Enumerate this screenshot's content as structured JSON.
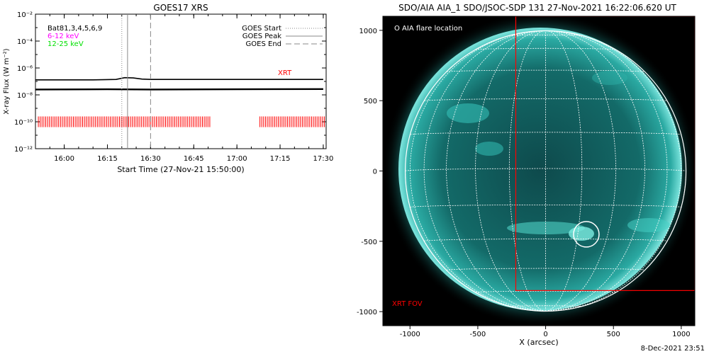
{
  "footer": "8-Dec-2021 23:51",
  "colors": {
    "red": "#ff0000",
    "magenta": "#ff00ff",
    "green": "#00e000",
    "aia_teal": "#2fb9b0"
  },
  "chart_data": [
    {
      "type": "line",
      "title": "GOES17 XRS",
      "xlabel": "Start Time (27-Nov-21 15:50:00)",
      "ylabel": "X-ray Flux (W m⁻²)",
      "xlim": [
        "15:50",
        "17:31"
      ],
      "ylim": [
        1e-12,
        0.01
      ],
      "yscale": "log",
      "x_tick_labels": [
        "16:00",
        "16:15",
        "16:30",
        "16:45",
        "17:00",
        "17:15",
        "17:30"
      ],
      "y_tick_labels": [
        "10⁻¹²",
        "10⁻¹⁰",
        "10⁻⁸",
        "10⁻⁶",
        "10⁻⁴",
        "10⁻²"
      ],
      "legend_left": [
        "Bat81,3,4,5,6,9",
        "6-12 keV",
        "12-25 keV"
      ],
      "legend_right": [
        "GOES Start",
        "GOES Peak",
        "GOES End"
      ],
      "series": [
        {
          "name": "",
          "x": [
            "15:50",
            "16:00",
            "16:10",
            "16:18",
            "16:21",
            "16:24",
            "16:27",
            "16:30",
            "16:45",
            "17:00",
            "17:15",
            "17:30"
          ],
          "y": [
            1.3e-07,
            1.3e-07,
            1.3e-07,
            1.4e-07,
            1.9e-07,
            1.8e-07,
            1.5e-07,
            1.4e-07,
            1.4e-07,
            1.4e-07,
            1.4e-07,
            1.4e-07
          ]
        },
        {
          "name": "",
          "x": [
            "15:50",
            "16:15",
            "16:30",
            "17:00",
            "17:30"
          ],
          "y": [
            2.5e-08,
            2.6e-08,
            2.5e-08,
            2.6e-08,
            2.7e-08
          ]
        }
      ],
      "markers": {
        "goes_start": "16:20",
        "goes_peak": "16:22",
        "goes_end": "16:30"
      },
      "xrt_label": "XRT",
      "xrt_intervals": [
        [
          "15:51",
          "16:51"
        ],
        [
          "17:08",
          "17:31"
        ]
      ]
    },
    {
      "type": "scatter",
      "title": "SDO/AIA AIA_1 SDO/JSOC-SDP 131 27-Nov-2021 16:22:06.620 UT",
      "xlabel": "X (arcsec)",
      "ylabel": "",
      "xlim": [
        -1200,
        1100
      ],
      "ylim": [
        -1100,
        1100
      ],
      "x_tick_labels": [
        "-1000",
        "-500",
        "0",
        "500",
        "1000"
      ],
      "y_tick_labels": [
        "1000",
        "500",
        "0",
        "-500",
        "-1000"
      ],
      "legend": "O AIA flare location",
      "fov_label": "XRT FOV",
      "flare_location": {
        "x": 300,
        "y": -450
      },
      "xrt_fov": {
        "x_min": -220,
        "x_max": 1100,
        "y_min": -850,
        "y_max": 1100
      }
    }
  ]
}
